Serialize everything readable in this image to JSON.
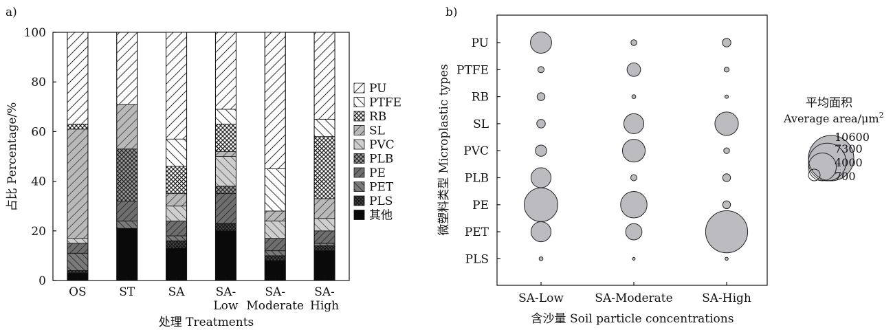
{
  "chart_data": [
    {
      "type": "bar",
      "stacked": true,
      "panel_label": "a)",
      "xlabel": "处理 Treatments",
      "ylabel": "占比 Percentage/%",
      "ylim": [
        0,
        100
      ],
      "yticks": [
        0,
        20,
        40,
        60,
        80,
        100
      ],
      "categories": [
        {
          "line1": "OS",
          "line2": ""
        },
        {
          "line1": "ST",
          "line2": ""
        },
        {
          "line1": "SA",
          "line2": ""
        },
        {
          "line1": "SA-",
          "line2": "Low"
        },
        {
          "line1": "SA-",
          "line2": "Moderate"
        },
        {
          "line1": "SA-",
          "line2": "High"
        }
      ],
      "legend_placement": "right",
      "series": [
        {
          "name": "其他",
          "pattern": "black",
          "values": [
            3,
            21,
            13,
            20,
            8,
            12
          ]
        },
        {
          "name": "PLS",
          "pattern": "darkcross",
          "values": [
            1,
            0,
            3,
            3,
            2,
            2
          ]
        },
        {
          "name": "PET",
          "pattern": "darkdiag",
          "values": [
            7,
            3,
            2,
            0,
            2,
            1
          ]
        },
        {
          "name": "PE",
          "pattern": "darkdiag2",
          "values": [
            4,
            8,
            6,
            12,
            5,
            5
          ]
        },
        {
          "name": "PLB",
          "pattern": "cross",
          "values": [
            0,
            21,
            0,
            3,
            0,
            0
          ]
        },
        {
          "name": "PVC",
          "pattern": "lightdiag",
          "values": [
            2,
            0,
            6,
            12,
            7,
            5
          ]
        },
        {
          "name": "SL",
          "pattern": "lightdiag2",
          "values": [
            44,
            18,
            5,
            2,
            4,
            8
          ]
        },
        {
          "name": "RB",
          "pattern": "lightcross",
          "values": [
            2,
            0,
            11,
            11,
            0,
            25
          ]
        },
        {
          "name": "PTFE",
          "pattern": "backslash",
          "values": [
            0,
            0,
            11,
            6,
            17,
            7
          ]
        },
        {
          "name": "PU",
          "pattern": "slash",
          "values": [
            37,
            29,
            43,
            31,
            55,
            35
          ]
        }
      ]
    },
    {
      "type": "scatter",
      "subtype": "bubble",
      "panel_label": "b)",
      "xlabel": "含沙量 Soil particle concentrations",
      "ylabel": "微塑料类型 Microplastic types",
      "x_categories": [
        "SA-Low",
        "SA-Moderate",
        "SA-High"
      ],
      "y_categories": [
        "PU",
        "PTFE",
        "RB",
        "SL",
        "PVC",
        "PLB",
        "PE",
        "PET",
        "PLS"
      ],
      "size_unit": "Average area/μm²",
      "points": [
        {
          "x": "SA-Low",
          "y": "PU",
          "area": 2700
        },
        {
          "x": "SA-Low",
          "y": "PTFE",
          "area": 230
        },
        {
          "x": "SA-Low",
          "y": "RB",
          "area": 370
        },
        {
          "x": "SA-Low",
          "y": "SL",
          "area": 440
        },
        {
          "x": "SA-Low",
          "y": "PVC",
          "area": 760
        },
        {
          "x": "SA-Low",
          "y": "PLB",
          "area": 2400
        },
        {
          "x": "SA-Low",
          "y": "PE",
          "area": 6800
        },
        {
          "x": "SA-Low",
          "y": "PET",
          "area": 2400
        },
        {
          "x": "SA-Low",
          "y": "PLS",
          "area": 90
        },
        {
          "x": "SA-Moderate",
          "y": "PU",
          "area": 200
        },
        {
          "x": "SA-Moderate",
          "y": "PTFE",
          "area": 1100
        },
        {
          "x": "SA-Moderate",
          "y": "RB",
          "area": 90
        },
        {
          "x": "SA-Moderate",
          "y": "SL",
          "area": 2400
        },
        {
          "x": "SA-Moderate",
          "y": "PVC",
          "area": 3100
        },
        {
          "x": "SA-Moderate",
          "y": "PLB",
          "area": 230
        },
        {
          "x": "SA-Moderate",
          "y": "PE",
          "area": 4200
        },
        {
          "x": "SA-Moderate",
          "y": "PET",
          "area": 1600
        },
        {
          "x": "SA-Moderate",
          "y": "PLS",
          "area": 45
        },
        {
          "x": "SA-High",
          "y": "PU",
          "area": 440
        },
        {
          "x": "SA-High",
          "y": "PTFE",
          "area": 140
        },
        {
          "x": "SA-High",
          "y": "RB",
          "area": 70
        },
        {
          "x": "SA-High",
          "y": "SL",
          "area": 3300
        },
        {
          "x": "SA-High",
          "y": "PVC",
          "area": 200
        },
        {
          "x": "SA-High",
          "y": "PLB",
          "area": 370
        },
        {
          "x": "SA-High",
          "y": "PE",
          "area": 370
        },
        {
          "x": "SA-High",
          "y": "PET",
          "area": 10600
        },
        {
          "x": "SA-High",
          "y": "PLS",
          "area": 60
        }
      ],
      "size_legend": {
        "title_line1": "平均面积",
        "title_line2": "Average area/μm",
        "title_sup": "2",
        "values": [
          10600,
          7300,
          4000,
          700
        ]
      },
      "bubble_color": "#bcbcc0"
    }
  ]
}
